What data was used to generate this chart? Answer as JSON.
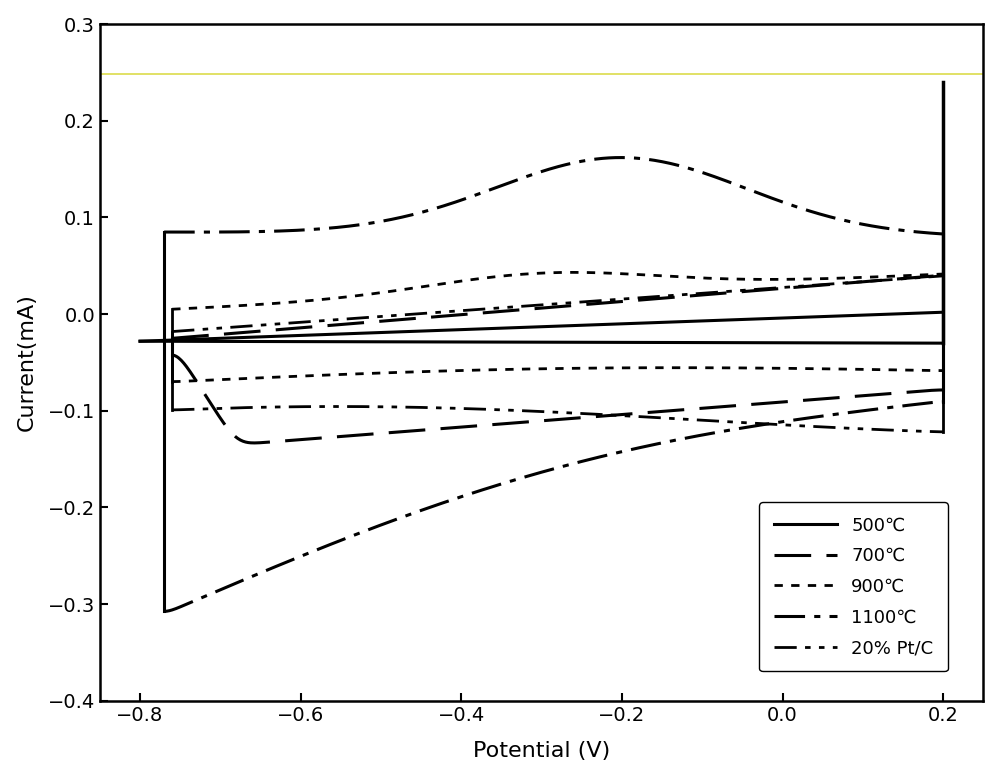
{
  "xlabel": "Potential (V)",
  "ylabel": "Current(mA)",
  "xlim": [
    -0.85,
    0.25
  ],
  "ylim": [
    -0.4,
    0.3
  ],
  "xticks": [
    -0.8,
    -0.6,
    -0.4,
    -0.2,
    0.0,
    0.2
  ],
  "yticks": [
    -0.4,
    -0.3,
    -0.2,
    -0.1,
    0.0,
    0.1,
    0.2,
    0.3
  ],
  "background_color": "#f5f5f5",
  "yellow_line_y": 0.248,
  "legend_labels": [
    "500℃",
    "700℃",
    "900℃",
    "1100℃",
    "20% Pt/C"
  ],
  "figsize": [
    10.0,
    7.78
  ],
  "dpi": 100
}
